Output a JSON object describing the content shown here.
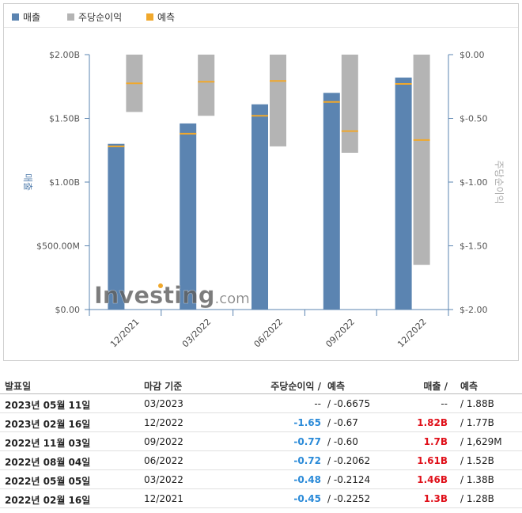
{
  "legend": [
    {
      "label": "매출",
      "color": "#5b84b1"
    },
    {
      "label": "주당순이익",
      "color": "#b4b4b4"
    },
    {
      "label": "예측",
      "color": "#f0a82c"
    }
  ],
  "chart_data": {
    "type": "bar",
    "categories": [
      "12/2021",
      "03/2022",
      "06/2022",
      "09/2022",
      "12/2022"
    ],
    "series": [
      {
        "name": "매출",
        "values": [
          1.3,
          1.46,
          1.61,
          1.7,
          1.82
        ],
        "forecast": [
          1.28,
          1.38,
          1.52,
          1.629,
          1.77
        ]
      },
      {
        "name": "주당순이익",
        "values": [
          -0.45,
          -0.48,
          -0.72,
          -0.77,
          -1.65
        ],
        "forecast": [
          -0.2252,
          -0.2124,
          -0.2062,
          -0.6,
          -0.67
        ]
      }
    ],
    "ylabel": "매출",
    "y2label": "주당순이익",
    "ylim": [
      0,
      2.0
    ],
    "y2lim": [
      -2.0,
      0
    ],
    "y_ticks": [
      "$0.00",
      "$500.00M",
      "$1.00B",
      "$1.50B",
      "$2.00B"
    ],
    "y2_ticks": [
      "$-2.00",
      "$-1.50",
      "$-1.00",
      "$-0.50",
      "$0.00"
    ],
    "watermark": "Investing.com"
  },
  "table": {
    "headers": {
      "date": "발표일",
      "close": "마감 기준",
      "eps": "주당순이익 /",
      "eps_f": "예측",
      "rev": "매출 /",
      "rev_f": "예측"
    },
    "rows": [
      {
        "date": "2023년 05월 11일",
        "close": "03/2023",
        "eps": "--",
        "eps_color": "",
        "eps_f": "/ -0.6675",
        "rev": "--",
        "rev_color": "",
        "rev_f": "/ 1.88B"
      },
      {
        "date": "2023년 02월 16일",
        "close": "12/2022",
        "eps": "-1.65",
        "eps_color": "blue",
        "eps_f": "/ -0.67",
        "rev": "1.82B",
        "rev_color": "red",
        "rev_f": "/ 1.77B"
      },
      {
        "date": "2022년 11월 03일",
        "close": "09/2022",
        "eps": "-0.77",
        "eps_color": "blue",
        "eps_f": "/ -0.60",
        "rev": "1.7B",
        "rev_color": "red",
        "rev_f": "/ 1,629M"
      },
      {
        "date": "2022년 08월 04일",
        "close": "06/2022",
        "eps": "-0.72",
        "eps_color": "blue",
        "eps_f": "/ -0.2062",
        "rev": "1.61B",
        "rev_color": "red",
        "rev_f": "/ 1.52B"
      },
      {
        "date": "2022년 05월 05일",
        "close": "03/2022",
        "eps": "-0.48",
        "eps_color": "blue",
        "eps_f": "/ -0.2124",
        "rev": "1.46B",
        "rev_color": "red",
        "rev_f": "/ 1.38B"
      },
      {
        "date": "2022년 02월 16일",
        "close": "12/2021",
        "eps": "-0.45",
        "eps_color": "blue",
        "eps_f": "/ -0.2252",
        "rev": "1.3B",
        "rev_color": "red",
        "rev_f": "/ 1.28B"
      }
    ]
  }
}
